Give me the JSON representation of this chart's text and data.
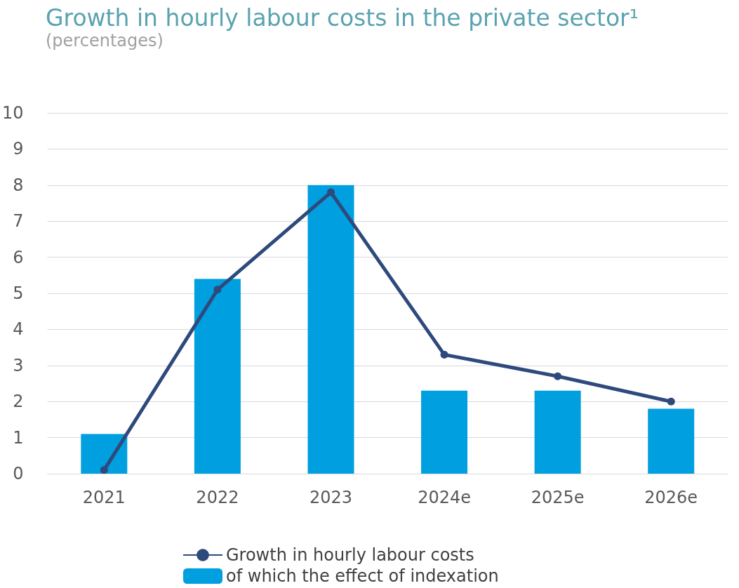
{
  "chart_data": {
    "type": "bar",
    "title": "Growth in hourly labour costs in the private sector¹",
    "subtitle": "(percentages)",
    "categories": [
      "2021",
      "2022",
      "2023",
      "2024e",
      "2025e",
      "2026e"
    ],
    "series": [
      {
        "name": "Growth in hourly labour costs",
        "type": "line",
        "color": "#2e4a7d",
        "values": [
          0.1,
          5.1,
          7.8,
          3.3,
          2.7,
          2.0
        ]
      },
      {
        "name": "of which the effect of indexation",
        "color": "#009fe0",
        "values": [
          1.1,
          5.4,
          8.0,
          2.3,
          2.3,
          1.8
        ]
      }
    ],
    "ylim": [
      0,
      10
    ],
    "yticks": [
      0,
      1,
      2,
      3,
      4,
      5,
      6,
      7,
      8,
      9,
      10
    ],
    "grid": "y",
    "legend": "bottom",
    "marker": "circle",
    "line_style": "solid"
  }
}
